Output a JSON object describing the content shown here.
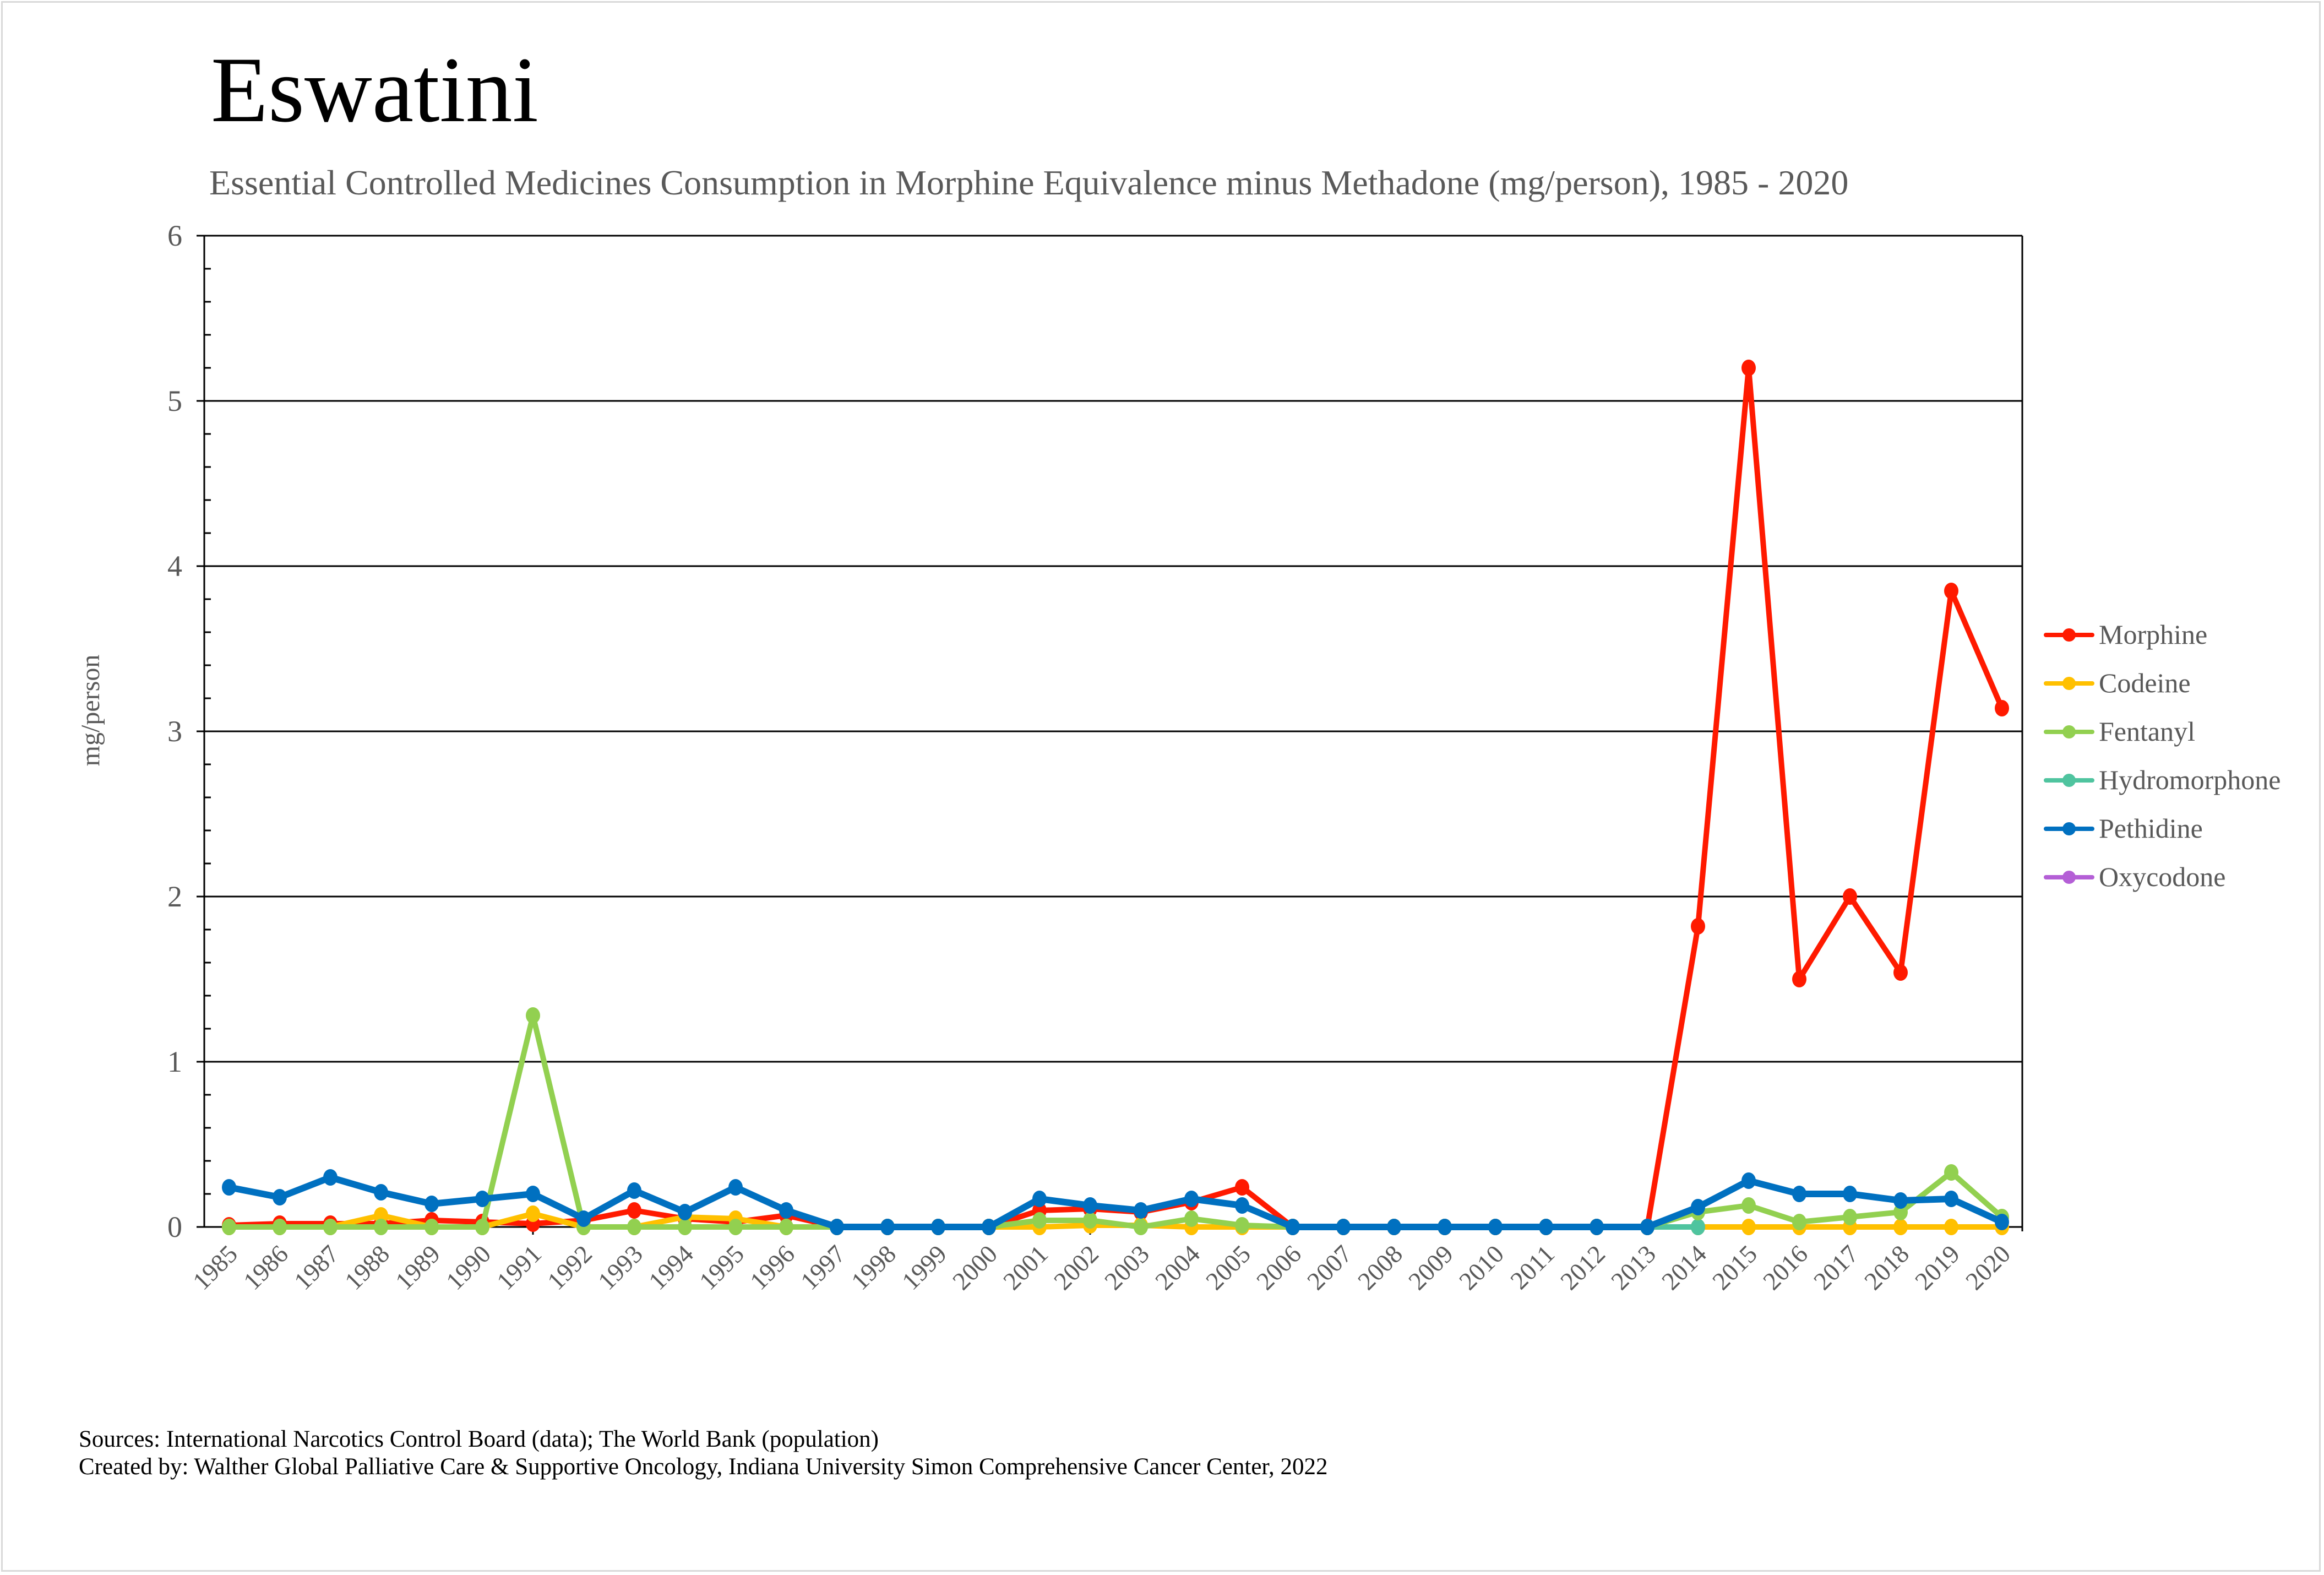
{
  "header": {
    "title": "Eswatini",
    "subtitle": "Essential Controlled Medicines Consumption in Morphine Equivalence minus Methadone (mg/person), 1985 - 2020"
  },
  "footer": {
    "sources": "Sources: International Narcotics Control Board (data); The World Bank (population)",
    "created_by": "Created by: Walther Global Palliative Care & Supportive Oncology, Indiana University Simon Comprehensive Cancer Center, 2022"
  },
  "chart_data": {
    "type": "line",
    "title": "Eswatini",
    "subtitle": "Essential Controlled Medicines Consumption in Morphine Equivalence minus Methadone (mg/person), 1985 - 2020",
    "xlabel": "",
    "ylabel": "mg/person",
    "ylim": [
      0,
      6
    ],
    "yticks": [
      "0",
      "1",
      "2",
      "3",
      "4",
      "5",
      "6"
    ],
    "grid": true,
    "legend_position": "right",
    "x": [
      "1985",
      "1986",
      "1987",
      "1988",
      "1989",
      "1990",
      "1991",
      "1992",
      "1993",
      "1994",
      "1995",
      "1996",
      "1997",
      "1998",
      "1999",
      "2000",
      "2001",
      "2002",
      "2003",
      "2004",
      "2005",
      "2006",
      "2007",
      "2008",
      "2009",
      "2010",
      "2011",
      "2012",
      "2013",
      "2014",
      "2015",
      "2016",
      "2017",
      "2018",
      "2019",
      "2020"
    ],
    "series": [
      {
        "name": "Morphine",
        "color": "#ff1a00",
        "values": [
          0.01,
          0.02,
          0.02,
          0.02,
          0.04,
          0.03,
          0.02,
          0.04,
          0.1,
          0.05,
          0.03,
          0.07,
          0,
          0,
          0,
          0,
          0.1,
          0.11,
          0.09,
          0.15,
          0.24,
          0,
          0,
          0,
          0,
          0,
          0,
          0,
          0,
          1.82,
          5.2,
          1.5,
          2.0,
          1.54,
          3.85,
          3.14
        ]
      },
      {
        "name": "Codeine",
        "color": "#ffc000",
        "values": [
          0,
          0,
          0,
          0.07,
          0,
          0,
          0.08,
          0,
          0,
          0.06,
          0.05,
          0,
          0,
          0,
          0,
          0,
          0,
          0.01,
          0.01,
          0,
          0,
          0,
          0,
          0,
          0,
          0,
          0,
          0,
          0,
          0,
          0,
          0,
          0,
          0,
          0,
          0
        ]
      },
      {
        "name": "Fentanyl",
        "color": "#92d050",
        "values": [
          0,
          0,
          0,
          0,
          0,
          0,
          1.28,
          0,
          0,
          0,
          0,
          0,
          0,
          0,
          0,
          0,
          0.04,
          0.04,
          0,
          0.05,
          0.01,
          0,
          0,
          0,
          0,
          0,
          0,
          0,
          0,
          0.09,
          0.13,
          0.03,
          0.06,
          0.09,
          0.33,
          0.06
        ]
      },
      {
        "name": "Hydromorphone",
        "color": "#4fc49f",
        "values": [
          null,
          null,
          null,
          null,
          null,
          null,
          null,
          null,
          null,
          null,
          null,
          null,
          null,
          null,
          null,
          null,
          null,
          null,
          null,
          null,
          null,
          null,
          null,
          null,
          null,
          null,
          null,
          null,
          0,
          0,
          null,
          null,
          null,
          null,
          null,
          null
        ]
      },
      {
        "name": "Pethidine",
        "color": "#0070c0",
        "values": [
          0.24,
          0.18,
          0.3,
          0.21,
          0.14,
          0.17,
          0.2,
          0.05,
          0.22,
          0.09,
          0.24,
          0.1,
          0,
          0,
          0,
          0,
          0.17,
          0.13,
          0.1,
          0.17,
          0.13,
          0,
          0,
          0,
          0,
          0,
          0,
          0,
          0,
          0.12,
          0.28,
          0.2,
          0.2,
          0.16,
          0.17,
          0.03
        ]
      },
      {
        "name": "Oxycodone",
        "color": "#b45fd6",
        "values": [
          null,
          null,
          null,
          null,
          null,
          null,
          null,
          null,
          null,
          null,
          null,
          null,
          null,
          null,
          null,
          null,
          null,
          null,
          null,
          null,
          null,
          null,
          null,
          null,
          null,
          null,
          null,
          null,
          null,
          null,
          null,
          null,
          null,
          null,
          null,
          null
        ]
      }
    ]
  }
}
